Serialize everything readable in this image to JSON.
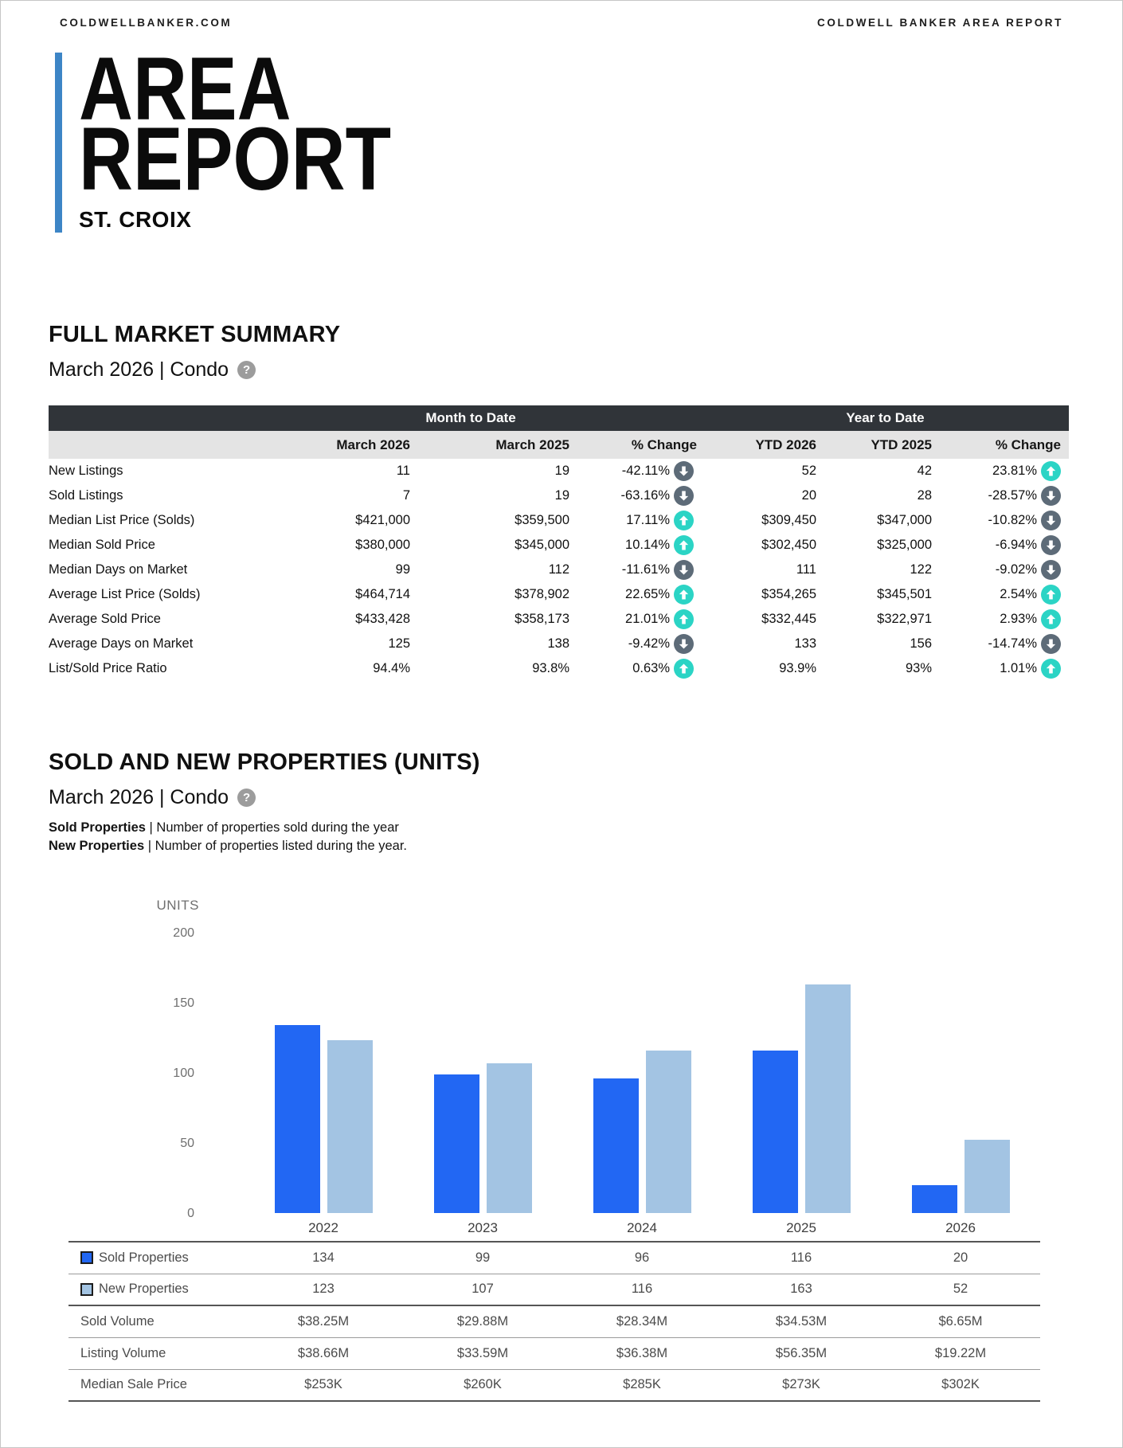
{
  "header": {
    "left": "COLDWELLBANKER.COM",
    "right": "COLDWELL BANKER AREA REPORT"
  },
  "masthead": {
    "line1": "AREA",
    "line2": "REPORT",
    "area": "ST. CROIX",
    "accent_color": "#3d85c6"
  },
  "help_icon_glyph": "?",
  "summary_section": {
    "heading": "FULL MARKET SUMMARY",
    "subheading": "March 2026 | Condo",
    "group_headers": [
      "Month to Date",
      "Year to Date"
    ],
    "column_headers": [
      "March 2026",
      "March 2025",
      "% Change",
      "YTD 2026",
      "YTD 2025",
      "% Change"
    ],
    "colors": {
      "header_bg": "#303439",
      "subheader_bg": "#e4e4e4",
      "up": "#2bd4c5",
      "down": "#5d6b78"
    },
    "rows": [
      {
        "label": "New Listings",
        "m2026": "11",
        "m2025": "19",
        "mtd_change": "-42.11%",
        "mtd_dir": "down",
        "ytd2026": "52",
        "ytd2025": "42",
        "ytd_change": "23.81%",
        "ytd_dir": "up"
      },
      {
        "label": "Sold Listings",
        "m2026": "7",
        "m2025": "19",
        "mtd_change": "-63.16%",
        "mtd_dir": "down",
        "ytd2026": "20",
        "ytd2025": "28",
        "ytd_change": "-28.57%",
        "ytd_dir": "down"
      },
      {
        "label": "Median List Price (Solds)",
        "m2026": "$421,000",
        "m2025": "$359,500",
        "mtd_change": "17.11%",
        "mtd_dir": "up",
        "ytd2026": "$309,450",
        "ytd2025": "$347,000",
        "ytd_change": "-10.82%",
        "ytd_dir": "down"
      },
      {
        "label": "Median Sold Price",
        "m2026": "$380,000",
        "m2025": "$345,000",
        "mtd_change": "10.14%",
        "mtd_dir": "up",
        "ytd2026": "$302,450",
        "ytd2025": "$325,000",
        "ytd_change": "-6.94%",
        "ytd_dir": "down"
      },
      {
        "label": "Median Days on Market",
        "m2026": "99",
        "m2025": "112",
        "mtd_change": "-11.61%",
        "mtd_dir": "down",
        "ytd2026": "111",
        "ytd2025": "122",
        "ytd_change": "-9.02%",
        "ytd_dir": "down"
      },
      {
        "label": "Average List Price (Solds)",
        "m2026": "$464,714",
        "m2025": "$378,902",
        "mtd_change": "22.65%",
        "mtd_dir": "up",
        "ytd2026": "$354,265",
        "ytd2025": "$345,501",
        "ytd_change": "2.54%",
        "ytd_dir": "up"
      },
      {
        "label": "Average Sold Price",
        "m2026": "$433,428",
        "m2025": "$358,173",
        "mtd_change": "21.01%",
        "mtd_dir": "up",
        "ytd2026": "$332,445",
        "ytd2025": "$322,971",
        "ytd_change": "2.93%",
        "ytd_dir": "up"
      },
      {
        "label": "Average Days on Market",
        "m2026": "125",
        "m2025": "138",
        "mtd_change": "-9.42%",
        "mtd_dir": "down",
        "ytd2026": "133",
        "ytd2025": "156",
        "ytd_change": "-14.74%",
        "ytd_dir": "down"
      },
      {
        "label": "List/Sold Price Ratio",
        "m2026": "94.4%",
        "m2025": "93.8%",
        "mtd_change": "0.63%",
        "mtd_dir": "up",
        "ytd2026": "93.9%",
        "ytd2025": "93%",
        "ytd_change": "1.01%",
        "ytd_dir": "up"
      }
    ]
  },
  "properties_section": {
    "heading": "SOLD AND NEW PROPERTIES (UNITS)",
    "subheading": "March 2026 | Condo",
    "descriptions": [
      {
        "term": "Sold Properties",
        "divider": "|",
        "text": "Number of properties sold during the year"
      },
      {
        "term": "New Properties",
        "divider": "|",
        "text": "Number of properties listed during the year."
      }
    ]
  },
  "chart_data": {
    "type": "bar",
    "title": "SOLD AND NEW PROPERTIES (UNITS)",
    "categories": [
      "2022",
      "2023",
      "2024",
      "2025",
      "2026"
    ],
    "series": [
      {
        "name": "Sold Properties",
        "color": "#2267f3",
        "values": [
          134,
          99,
          96,
          116,
          20
        ]
      },
      {
        "name": "New Properties",
        "color": "#a3c4e3",
        "values": [
          123,
          107,
          116,
          163,
          52
        ]
      }
    ],
    "ylabel": "UNITS",
    "yticks": [
      0,
      50,
      100,
      150,
      200
    ],
    "ylim": [
      0,
      200
    ],
    "grid": false,
    "legend_position": "table-left",
    "table_rows": [
      {
        "label": "Sold Volume",
        "values": [
          "$38.25M",
          "$29.88M",
          "$28.34M",
          "$34.53M",
          "$6.65M"
        ],
        "heavy": false
      },
      {
        "label": "Listing Volume",
        "values": [
          "$38.66M",
          "$33.59M",
          "$36.38M",
          "$56.35M",
          "$19.22M"
        ],
        "heavy": false
      },
      {
        "label": "Median Sale Price",
        "values": [
          "$253K",
          "$260K",
          "$285K",
          "$273K",
          "$302K"
        ],
        "heavy": true
      }
    ]
  }
}
